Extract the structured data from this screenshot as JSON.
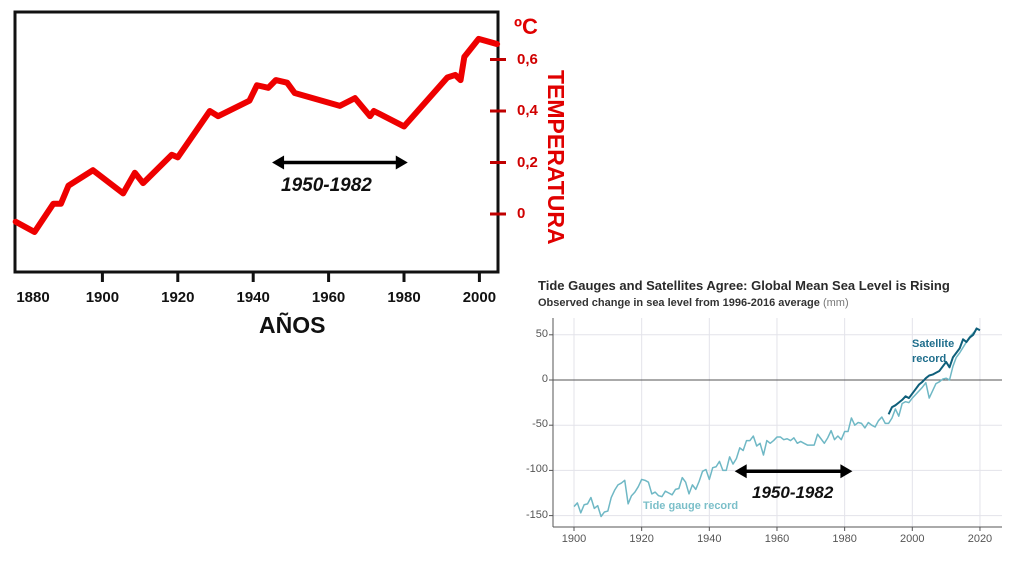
{
  "chart_data": [
    {
      "type": "line",
      "xlabel": "AÑOS",
      "ylabel": "TEMPERATURA",
      "yunit": "ºC",
      "xlim": [
        1877,
        2005
      ],
      "ylim": [
        -0.22,
        0.8
      ],
      "xticks": [
        "1880",
        "1900",
        "1920",
        "1940",
        "1960",
        "1980",
        "2000"
      ],
      "xtick_values": [
        1880,
        1900,
        1920,
        1940,
        1960,
        1980,
        2000
      ],
      "yticks": [
        "0",
        "0,2",
        "0,4",
        "0,6"
      ],
      "ytick_values": [
        0,
        0.2,
        0.4,
        0.6
      ],
      "y_axis_side": "right",
      "grid": false,
      "line_color": "#ee0000",
      "series": [
        {
          "x": [
            1877,
            1882,
            1887,
            1889,
            1891,
            1897.5,
            1905.5,
            1908.6,
            1910.8,
            1918.4,
            1920,
            1928.5,
            1930.7,
            1939,
            1941,
            1944,
            1946,
            1949,
            1951,
            1963,
            1967,
            1971,
            1972,
            1980,
            1991.5,
            1993.6,
            1995,
            1996,
            1999.8,
            2004.7
          ],
          "y": [
            -0.03,
            -0.07,
            0.04,
            0.04,
            0.11,
            0.17,
            0.08,
            0.16,
            0.12,
            0.23,
            0.22,
            0.4,
            0.38,
            0.44,
            0.5,
            0.49,
            0.52,
            0.51,
            0.47,
            0.42,
            0.45,
            0.38,
            0.4,
            0.34,
            0.53,
            0.54,
            0.52,
            0.61,
            0.68,
            0.66
          ]
        }
      ],
      "annotation": {
        "label": "1950-1982",
        "x_start": 1945,
        "x_end": 1981,
        "y": 0.2
      }
    },
    {
      "type": "line",
      "title": "Tide Gauges and Satellites Agree: Global Mean Sea Level is Rising",
      "subtitle": "Observed change in sea level from 1996-2016 average",
      "subtitle_unit": "(mm)",
      "xlim": [
        1894,
        2026
      ],
      "ylim": [
        -160,
        68
      ],
      "xticks": [
        "1900",
        "1920",
        "1940",
        "1960",
        "1980",
        "2000",
        "2020"
      ],
      "xtick_values": [
        1900,
        1920,
        1940,
        1960,
        1980,
        2000,
        2020
      ],
      "yticks": [
        "50",
        "0",
        "-50",
        "-100",
        "-150"
      ],
      "ytick_values": [
        50,
        0,
        -50,
        -100,
        -150
      ],
      "grid": true,
      "series": [
        {
          "name": "Tide gauge record",
          "color": "#6fb8c5",
          "x": [
            1900,
            1901,
            1902,
            1903,
            1904,
            1905,
            1906,
            1907,
            1908,
            1909,
            1910,
            1911,
            1912,
            1913,
            1914,
            1915,
            1916,
            1917,
            1918,
            1919,
            1920,
            1921,
            1922,
            1923,
            1924,
            1925,
            1926,
            1927,
            1928,
            1929,
            1930,
            1931,
            1932,
            1933,
            1934,
            1935,
            1936,
            1937,
            1938,
            1939,
            1940,
            1941,
            1942,
            1943,
            1944,
            1945,
            1946,
            1947,
            1948,
            1949,
            1950,
            1951,
            1952,
            1953,
            1954,
            1955,
            1956,
            1957,
            1958,
            1959,
            1960,
            1961,
            1962,
            1963,
            1964,
            1965,
            1966,
            1967,
            1968,
            1969,
            1970,
            1971,
            1972,
            1973,
            1974,
            1975,
            1976,
            1977,
            1978,
            1979,
            1980,
            1981,
            1982,
            1983,
            1984,
            1985,
            1986,
            1987,
            1988,
            1989,
            1990,
            1991,
            1992,
            1993,
            1994,
            1995,
            1996,
            1997,
            1998,
            1999,
            2000,
            2001,
            2002,
            2003,
            2004,
            2005,
            2006,
            2007,
            2008,
            2009,
            2010,
            2011,
            2012,
            2013,
            2014,
            2015,
            2016,
            2017,
            2018,
            2019
          ],
          "y": [
            -140,
            -136,
            -147,
            -138,
            -137,
            -130,
            -142,
            -139,
            -151,
            -146,
            -145,
            -130,
            -122,
            -116,
            -114,
            -111,
            -137,
            -128,
            -124,
            -118,
            -110,
            -111,
            -113,
            -126,
            -124,
            -128,
            -129,
            -123,
            -125,
            -127,
            -121,
            -120,
            -108,
            -113,
            -126,
            -116,
            -121,
            -112,
            -101,
            -99,
            -110,
            -97,
            -96,
            -90,
            -100,
            -100,
            -85,
            -93,
            -87,
            -75,
            -78,
            -67,
            -67,
            -62,
            -73,
            -70,
            -83,
            -67,
            -70,
            -67,
            -63,
            -63,
            -66,
            -65,
            -67,
            -64,
            -70,
            -68,
            -70,
            -72,
            -72,
            -72,
            -60,
            -65,
            -70,
            -64,
            -56,
            -66,
            -62,
            -66,
            -57,
            -57,
            -42,
            -50,
            -47,
            -48,
            -53,
            -47,
            -50,
            -52,
            -45,
            -41,
            -48,
            -48,
            -42,
            -32,
            -40,
            -26,
            -24,
            -25,
            -20,
            -16,
            -12,
            -8,
            -3,
            -20,
            -12,
            -4,
            -2,
            1,
            2,
            0,
            15,
            25,
            30,
            36,
            42,
            48,
            52,
            56
          ]
        },
        {
          "name": "Satellite record",
          "color": "#0f5f7a",
          "x": [
            1993,
            1994,
            1995,
            1996,
            1997,
            1998,
            1999,
            2000,
            2001,
            2002,
            2003,
            2004,
            2005,
            2006,
            2007,
            2008,
            2009,
            2010,
            2011,
            2012,
            2013,
            2014,
            2015,
            2016,
            2017,
            2018,
            2019,
            2020
          ],
          "y": [
            -38,
            -30,
            -28,
            -25,
            -22,
            -18,
            -20,
            -15,
            -10,
            -5,
            -2,
            2,
            5,
            6,
            8,
            10,
            15,
            20,
            14,
            25,
            30,
            35,
            45,
            42,
            47,
            50,
            57,
            55
          ]
        }
      ],
      "annotation": {
        "label": "1950-1982",
        "x_start": 1947.5,
        "x_end": 1982.3,
        "y": -101
      }
    }
  ],
  "labels": {
    "satellite_line1": "Satellite",
    "satellite_line2": "record",
    "tide_gauge": "Tide gauge record"
  }
}
